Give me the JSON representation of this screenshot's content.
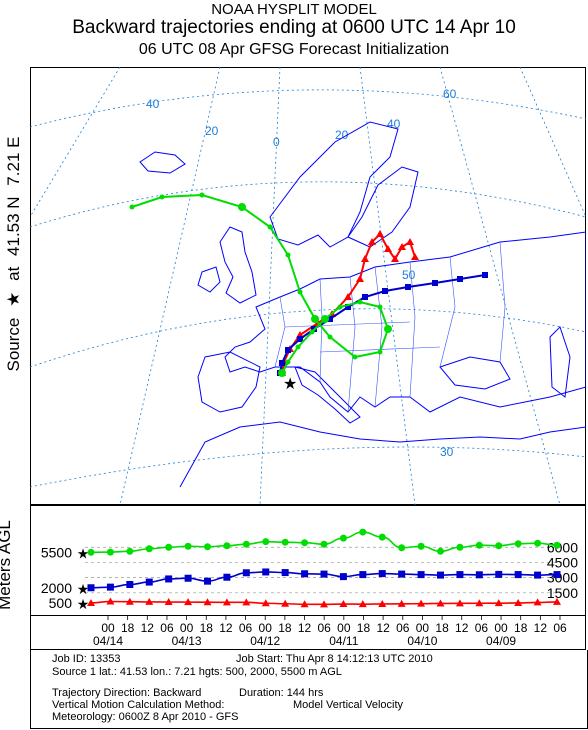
{
  "header": {
    "line1": "NOAA HYSPLIT MODEL",
    "line2": "Backward trajectories ending at 0600 UTC 14 Apr 10",
    "line3": "06 UTC 08 Apr    GFSG  Forecast Initialization"
  },
  "side_labels": {
    "source": "Source",
    "star": "★",
    "at": "at",
    "lat": "41.53 N",
    "lon": "7.21 E",
    "meters": "Meters AGL"
  },
  "map": {
    "grid_labels": [
      "40",
      "20",
      "0",
      "20",
      "40",
      "60",
      "50",
      "30"
    ],
    "colors": {
      "land": "#ffffff",
      "lines": "#0000ff",
      "grid": "#1b7fd6"
    }
  },
  "chart_data": {
    "type": "line",
    "title": "Backward trajectories ending at 0600 UTC 14 Apr 10",
    "x_axis": {
      "hours": [
        "00",
        "18",
        "12",
        "06",
        "00",
        "18",
        "12",
        "06",
        "00",
        "18",
        "12",
        "06",
        "00",
        "18",
        "12",
        "06",
        "00",
        "18",
        "12",
        "06",
        "00",
        "18",
        "12",
        "06"
      ],
      "dates": [
        "04/14",
        "04/13",
        "04/12",
        "04/11",
        "04/10",
        "04/09"
      ],
      "direction": "Backward",
      "hours_total": 144
    },
    "left_ticks": [
      "5500",
      "2000",
      "500"
    ],
    "right_ticks": [
      "6000",
      "4500",
      "3000",
      "1500"
    ],
    "series": [
      {
        "height": 500,
        "color": "#ff0000",
        "marker": "triangle",
        "values": [
          500,
          640,
          620,
          600,
          590,
          580,
          570,
          560,
          560,
          470,
          420,
          370,
          360,
          390,
          380,
          400,
          410,
          430,
          450,
          460,
          470,
          480,
          500,
          550,
          600
        ]
      },
      {
        "height": 2000,
        "color": "#0000cc",
        "marker": "square",
        "values": [
          2000,
          2060,
          2320,
          2560,
          2870,
          2940,
          2650,
          3040,
          3480,
          3560,
          3500,
          3380,
          3350,
          3100,
          3300,
          3400,
          3350,
          3300,
          3250,
          3300,
          3280,
          3320,
          3300,
          3250,
          3300
        ]
      },
      {
        "height": 5500,
        "color": "#00dd00",
        "marker": "circle",
        "values": [
          5500,
          5520,
          5600,
          5850,
          6000,
          6100,
          6050,
          6150,
          6300,
          6550,
          6500,
          6450,
          6300,
          6900,
          7500,
          7000,
          5950,
          6100,
          5600,
          6000,
          6200,
          6150,
          6350,
          6400,
          6200
        ]
      }
    ]
  },
  "footer": {
    "job_id": "Job ID: 13353",
    "job_start": "Job Start: Thu Apr  8 14:12:13 UTC 2010",
    "source_line": "Source 1 lat.: 41.53  lon.: 7.21  hgts: 500, 2000, 5500 m AGL",
    "direction": "Trajectory Direction: Backward",
    "duration": "Duration: 144 hrs",
    "vmethod": "Vertical Motion Calculation Method:",
    "vmethod_value": "Model Vertical Velocity",
    "meteorology": "Meteorology: 0600Z  8 Apr 2010 - GFS"
  }
}
